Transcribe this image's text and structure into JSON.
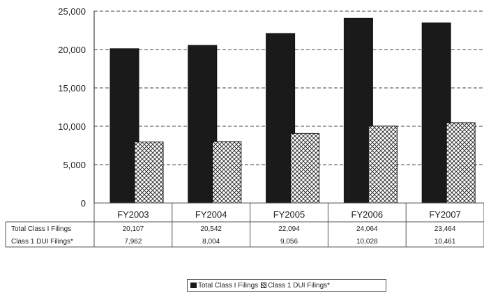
{
  "chart_data": {
    "type": "bar",
    "categories": [
      "FY2003",
      "FY2004",
      "FY2005",
      "FY2006",
      "FY2007"
    ],
    "series": [
      {
        "name": "Total Class I Filings",
        "values": [
          20107,
          20542,
          22094,
          24064,
          23464
        ],
        "labels": [
          "20,107",
          "20,542",
          "22,094",
          "24,064",
          "23,464"
        ],
        "color": "#1a1a1a"
      },
      {
        "name": "Class 1 DUI Filings*",
        "values": [
          7962,
          8004,
          9056,
          10028,
          10461
        ],
        "labels": [
          "7,962",
          "8,004",
          "9,056",
          "10,028",
          "10,461"
        ],
        "color": "#ffffff"
      }
    ],
    "table_row_labels": [
      "Total Class I Filings",
      "Class 1 DUI Filings*"
    ],
    "yticks": [
      "0",
      "5,000",
      "10,000",
      "15,000",
      "20,000",
      "25,000"
    ],
    "ylim": [
      0,
      25000
    ],
    "grid": true,
    "legend_position": "bottom",
    "legend_labels": [
      "Total Class I Filings",
      "Class 1 DUI Filings*"
    ]
  }
}
